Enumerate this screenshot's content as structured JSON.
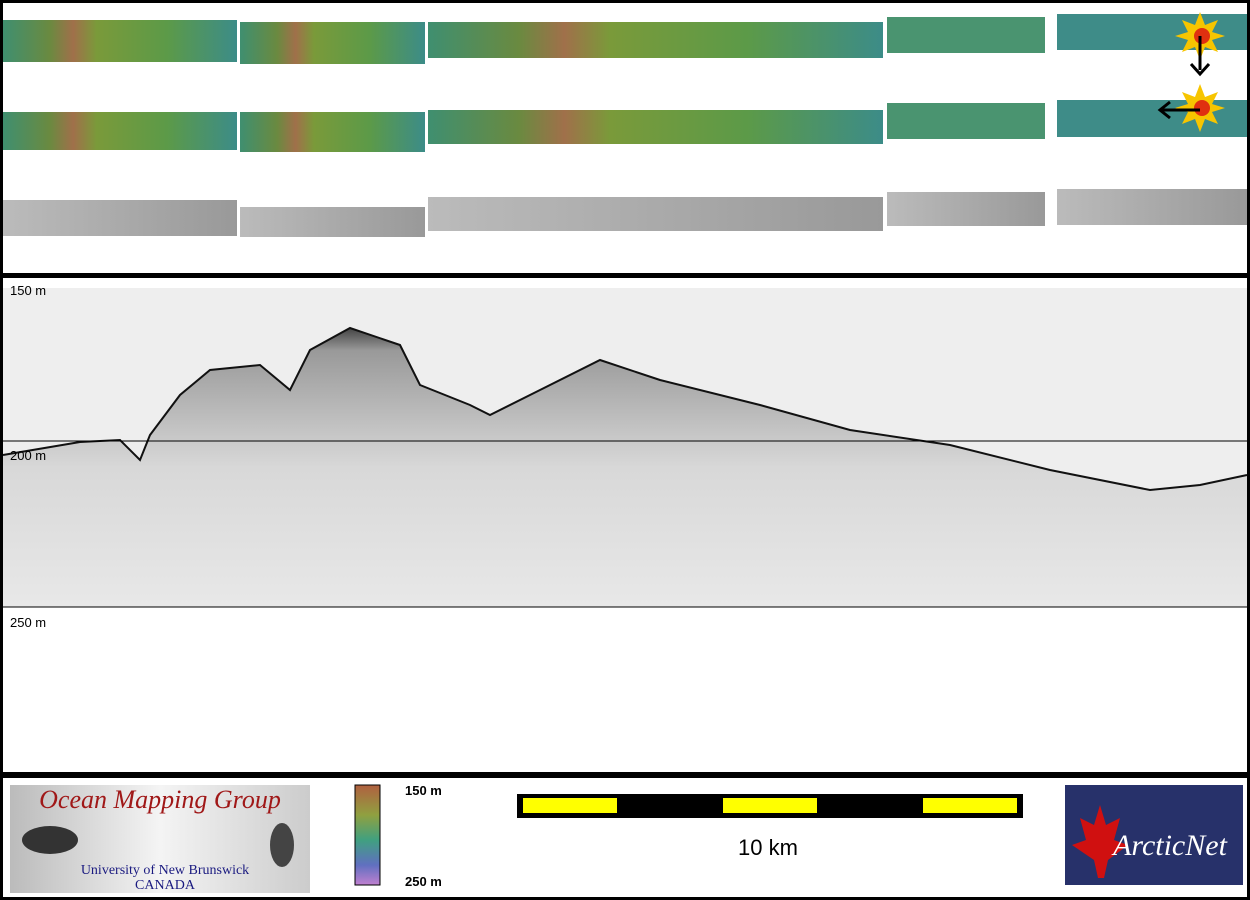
{
  "profile": {
    "depth_labels": [
      "150 m",
      "200 m",
      "250 m"
    ]
  },
  "legend": {
    "top": "150 m",
    "bottom": "250 m"
  },
  "scale_bar": "10 km",
  "logos": {
    "left": {
      "title": "Ocean Mapping Group",
      "line1": "University of New Brunswick",
      "line2": "CANADA"
    },
    "right": "ArcticNet"
  }
}
